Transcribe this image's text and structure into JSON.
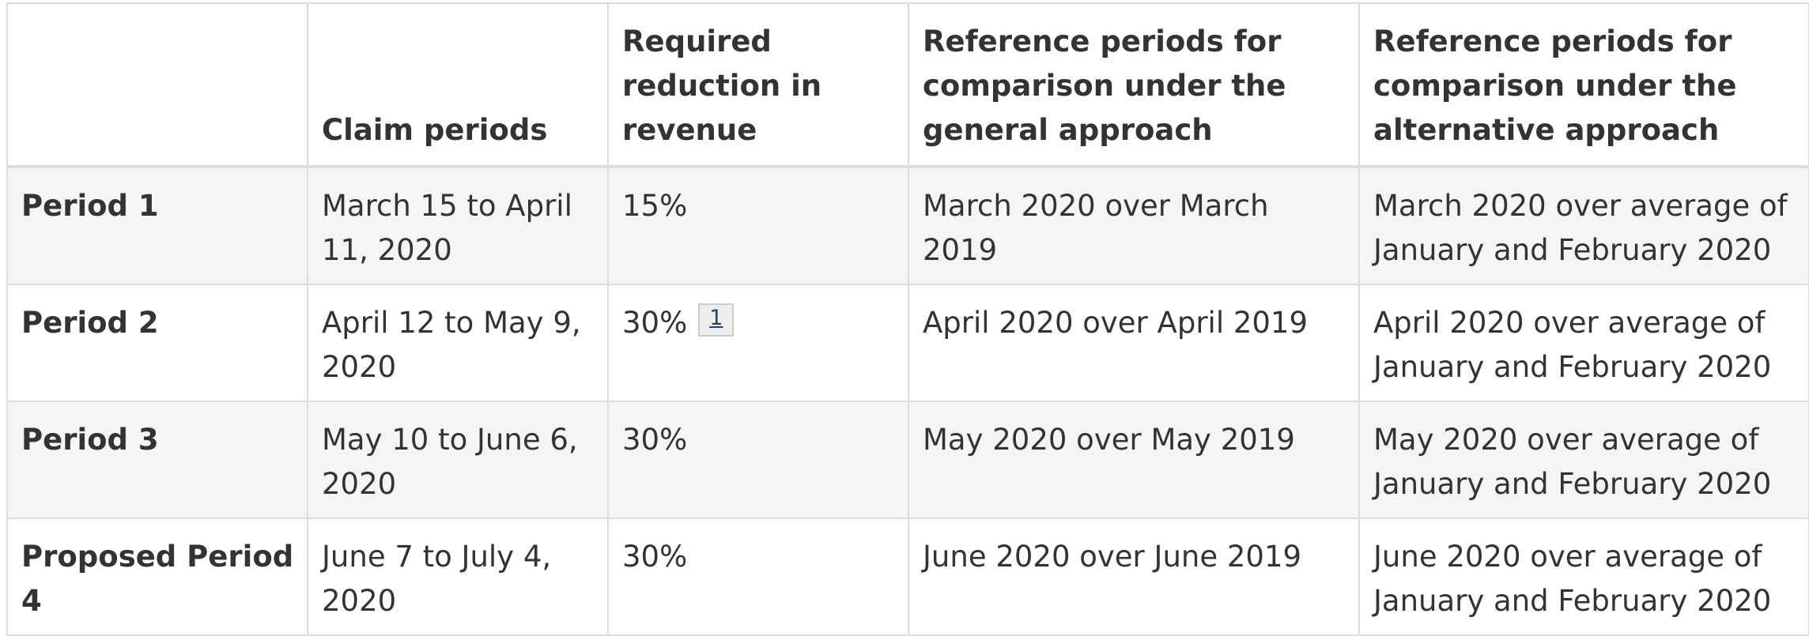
{
  "table": {
    "headers": [
      "",
      "Claim periods",
      "Required reduction in revenue",
      "Reference periods for comparison under the general approach",
      "Reference periods for comparison under the alternative approach"
    ],
    "rows": [
      {
        "period": "Period 1",
        "claim": "March 15 to April 11, 2020",
        "reduction": "15%",
        "general": "March 2020 over March 2019",
        "alternative": "March 2020 over average of January and February 2020"
      },
      {
        "period": "Period 2",
        "claim": "April 12 to May 9, 2020",
        "reduction": "30%",
        "footnote": "1",
        "general": "April 2020 over April 2019",
        "alternative": "April 2020 over average of January and February 2020"
      },
      {
        "period": "Period 3",
        "claim": "May 10 to June 6, 2020",
        "reduction": "30%",
        "general": "May 2020 over May 2019",
        "alternative": "May 2020 over average of January and February 2020"
      },
      {
        "period": "Proposed Period 4",
        "claim": "June 7 to July 4, 2020",
        "reduction": "30%",
        "general": "June 2020 over June 2019",
        "alternative": "June 2020 over average of January and February 2020"
      }
    ]
  }
}
